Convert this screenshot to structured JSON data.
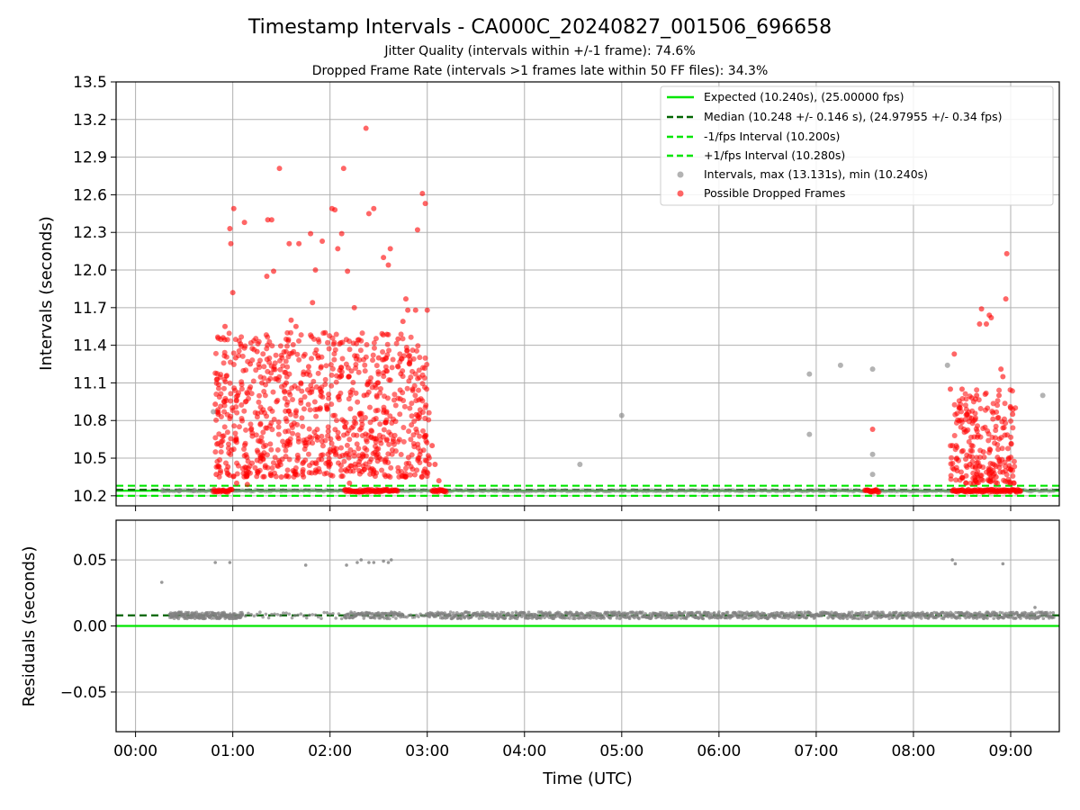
{
  "title": "Timestamp Intervals - CA000C_20240827_001506_696658",
  "subtitle1": "Jitter Quality (intervals within +/-1 frame): 74.6%",
  "subtitle2": "Dropped Frame Rate (intervals >1 frames late within 50 FF files): 34.3%",
  "colors": {
    "expected": "#00e600",
    "median": "#006400",
    "interval": "#00e600",
    "dropped": "#ff0000",
    "normal": "#808080"
  },
  "chart_data": [
    {
      "type": "scatter",
      "ylabel": "Intervals (seconds)",
      "xlim_hours": [
        -0.2,
        9.5
      ],
      "ylim": [
        10.12,
        13.5
      ],
      "x_ticks_hours": [
        0,
        1,
        2,
        3,
        4,
        5,
        6,
        7,
        8,
        9
      ],
      "x_tick_labels": [
        "00:00",
        "01:00",
        "02:00",
        "03:00",
        "04:00",
        "05:00",
        "06:00",
        "07:00",
        "08:00",
        "09:00"
      ],
      "y_ticks": [
        10.2,
        10.5,
        10.8,
        11.1,
        11.4,
        11.7,
        12.0,
        12.3,
        12.6,
        12.9,
        13.2,
        13.5
      ],
      "y_tick_labels": [
        "10.2",
        "10.5",
        "10.8",
        "11.1",
        "11.4",
        "11.7",
        "12.0",
        "12.3",
        "12.6",
        "12.9",
        "13.2",
        "13.5"
      ],
      "grid": true,
      "legend_position": "top-right",
      "lines": {
        "expected": 10.24,
        "median": 10.248,
        "minus_fps": 10.2,
        "plus_fps": 10.28
      },
      "legend": [
        "Expected (10.240s), (25.00000 fps)",
        "Median (10.248 +/- 0.146 s), (24.97955 +/- 0.34 fps)",
        "-1/fps Interval (10.200s)",
        "+1/fps Interval (10.280s)",
        "Intervals, max (13.131s), min (10.240s)",
        "Possible Dropped Frames"
      ],
      "normal_points": [
        [
          0.28,
          10.24
        ],
        [
          0.45,
          10.24
        ],
        [
          0.6,
          10.24
        ],
        [
          0.8,
          10.87
        ],
        [
          4.57,
          10.45
        ],
        [
          5.0,
          10.84
        ],
        [
          6.93,
          11.17
        ],
        [
          6.93,
          10.69
        ],
        [
          7.25,
          11.24
        ],
        [
          7.58,
          11.21
        ],
        [
          7.58,
          10.53
        ],
        [
          7.58,
          10.37
        ],
        [
          8.35,
          11.24
        ],
        [
          9.33,
          11.0
        ]
      ],
      "dropped_points": [
        [
          0.82,
          10.93
        ],
        [
          0.83,
          10.37
        ],
        [
          0.84,
          11.13
        ],
        [
          0.85,
          10.85
        ],
        [
          0.88,
          10.6
        ],
        [
          0.9,
          11.46
        ],
        [
          0.92,
          11.55
        ],
        [
          0.95,
          10.43
        ],
        [
          0.97,
          12.33
        ],
        [
          0.98,
          12.21
        ],
        [
          1.0,
          11.82
        ],
        [
          1.01,
          12.49
        ],
        [
          1.03,
          11.3
        ],
        [
          1.04,
          10.3
        ],
        [
          1.05,
          11.0
        ],
        [
          1.08,
          11.41
        ],
        [
          1.12,
          12.38
        ],
        [
          1.15,
          10.29
        ],
        [
          1.18,
          11.25
        ],
        [
          1.2,
          10.7
        ],
        [
          1.25,
          11.35
        ],
        [
          1.3,
          11.1
        ],
        [
          1.35,
          11.95
        ],
        [
          1.36,
          12.4
        ],
        [
          1.4,
          12.4
        ],
        [
          1.42,
          11.99
        ],
        [
          1.45,
          10.95
        ],
        [
          1.48,
          12.81
        ],
        [
          1.5,
          10.35
        ],
        [
          1.55,
          11.1
        ],
        [
          1.58,
          12.21
        ],
        [
          1.6,
          11.6
        ],
        [
          1.62,
          10.4
        ],
        [
          1.65,
          11.55
        ],
        [
          1.68,
          12.21
        ],
        [
          1.7,
          11.1
        ],
        [
          1.75,
          10.6
        ],
        [
          1.78,
          11.23
        ],
        [
          1.8,
          12.29
        ],
        [
          1.82,
          11.74
        ],
        [
          1.85,
          12.0
        ],
        [
          1.88,
          11.3
        ],
        [
          1.9,
          10.9
        ],
        [
          1.92,
          12.23
        ],
        [
          1.95,
          11.5
        ],
        [
          2.0,
          10.55
        ],
        [
          2.02,
          12.49
        ],
        [
          2.05,
          12.48
        ],
        [
          2.08,
          12.17
        ],
        [
          2.1,
          11.2
        ],
        [
          2.12,
          12.29
        ],
        [
          2.14,
          12.81
        ],
        [
          2.18,
          11.99
        ],
        [
          2.2,
          10.3
        ],
        [
          2.25,
          11.7
        ],
        [
          2.3,
          10.4
        ],
        [
          2.35,
          11.0
        ],
        [
          2.37,
          13.13
        ],
        [
          2.4,
          12.45
        ],
        [
          2.45,
          12.49
        ],
        [
          2.5,
          11.3
        ],
        [
          2.55,
          12.1
        ],
        [
          2.6,
          12.04
        ],
        [
          2.62,
          12.17
        ],
        [
          2.65,
          10.65
        ],
        [
          2.7,
          11.45
        ],
        [
          2.75,
          11.59
        ],
        [
          2.78,
          11.77
        ],
        [
          2.8,
          11.68
        ],
        [
          2.85,
          11.05
        ],
        [
          2.88,
          11.68
        ],
        [
          2.9,
          12.32
        ],
        [
          2.92,
          10.85
        ],
        [
          2.95,
          12.61
        ],
        [
          2.98,
          12.53
        ],
        [
          3.0,
          11.68
        ],
        [
          3.02,
          10.45
        ],
        [
          3.05,
          10.6
        ],
        [
          3.08,
          10.45
        ],
        [
          3.12,
          10.32
        ],
        [
          3.15,
          10.24
        ],
        [
          7.58,
          10.73
        ],
        [
          7.6,
          10.24
        ],
        [
          8.38,
          11.05
        ],
        [
          8.4,
          10.6
        ],
        [
          8.42,
          11.33
        ],
        [
          8.45,
          10.4
        ],
        [
          8.48,
          10.9
        ],
        [
          8.5,
          11.05
        ],
        [
          8.52,
          10.73
        ],
        [
          8.55,
          10.85
        ],
        [
          8.58,
          10.45
        ],
        [
          8.6,
          10.98
        ],
        [
          8.62,
          10.3
        ],
        [
          8.65,
          11.0
        ],
        [
          8.68,
          11.57
        ],
        [
          8.7,
          11.69
        ],
        [
          8.72,
          10.55
        ],
        [
          8.75,
          11.57
        ],
        [
          8.78,
          11.64
        ],
        [
          8.8,
          11.62
        ],
        [
          8.82,
          10.4
        ],
        [
          8.85,
          10.35
        ],
        [
          8.88,
          11.0
        ],
        [
          8.9,
          11.21
        ],
        [
          8.92,
          11.15
        ],
        [
          8.95,
          11.77
        ],
        [
          8.96,
          12.13
        ],
        [
          8.98,
          10.5
        ],
        [
          9.0,
          10.9
        ],
        [
          9.02,
          10.85
        ],
        [
          9.05,
          10.24
        ],
        [
          9.1,
          10.24
        ]
      ]
    },
    {
      "type": "scatter",
      "ylabel": "Residuals (seconds)",
      "xlabel": "Time (UTC)",
      "xlim_hours": [
        -0.2,
        9.5
      ],
      "ylim": [
        -0.08,
        0.08
      ],
      "y_ticks": [
        -0.05,
        0.0,
        0.05
      ],
      "y_tick_labels": [
        "−0.05",
        "0.00",
        "0.05"
      ],
      "grid": true,
      "lines": {
        "zero": 0.0,
        "median": 0.008
      },
      "outliers": [
        [
          0.27,
          0.033
        ],
        [
          0.82,
          0.048
        ],
        [
          0.97,
          0.048
        ],
        [
          1.75,
          0.046
        ],
        [
          2.17,
          0.046
        ],
        [
          2.28,
          0.048
        ],
        [
          2.32,
          0.05
        ],
        [
          2.4,
          0.048
        ],
        [
          2.45,
          0.048
        ],
        [
          2.55,
          0.049
        ],
        [
          2.6,
          0.048
        ],
        [
          2.63,
          0.05
        ],
        [
          8.4,
          0.05
        ],
        [
          8.43,
          0.047
        ],
        [
          8.92,
          0.047
        ],
        [
          9.25,
          0.014
        ]
      ]
    }
  ]
}
